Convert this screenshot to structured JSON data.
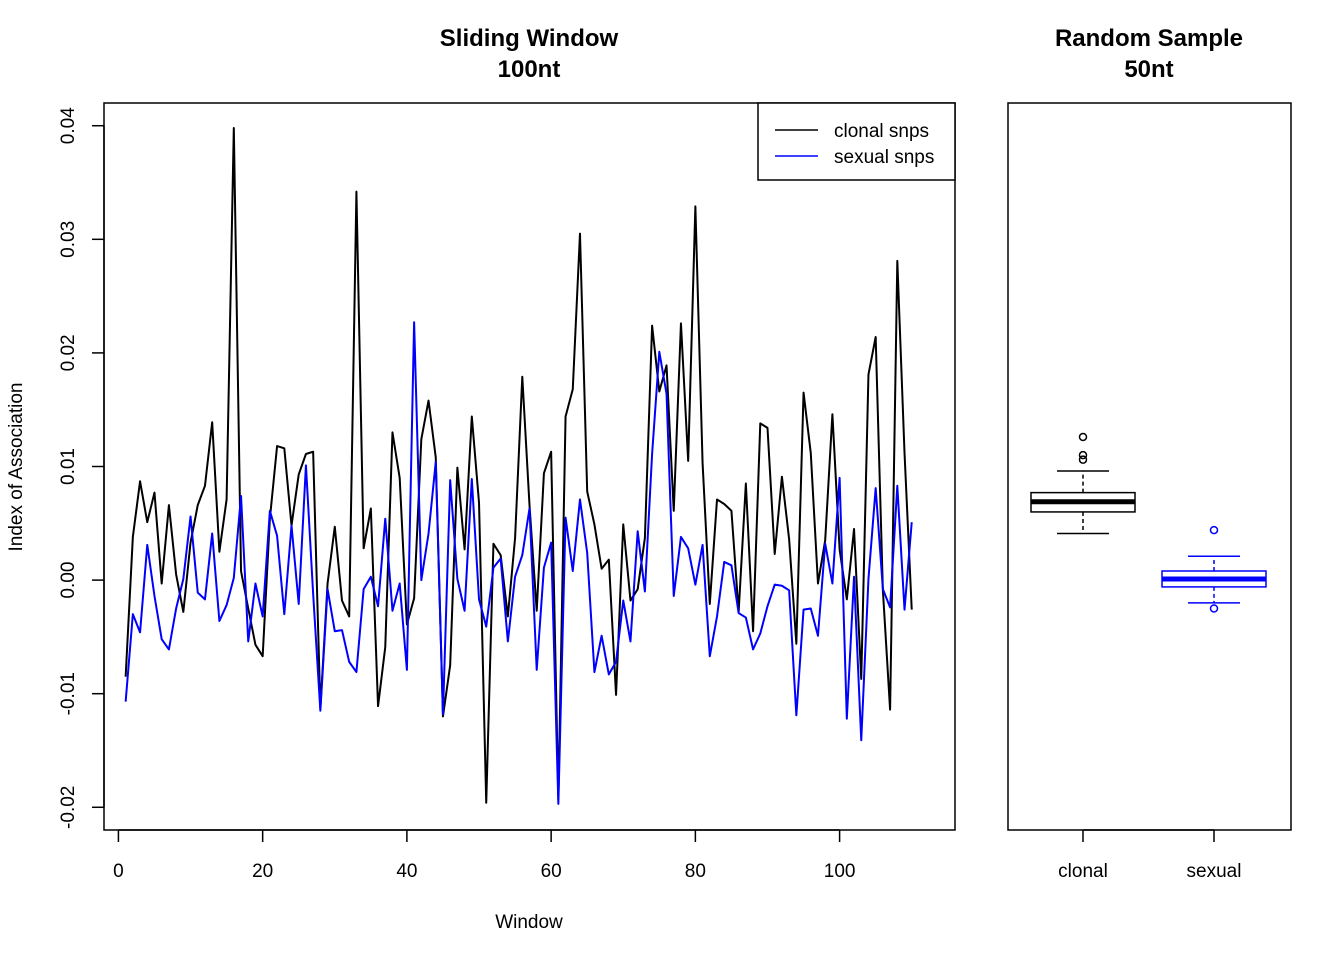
{
  "chart_data": [
    {
      "type": "line",
      "title": "Sliding Window",
      "subtitle": "100nt",
      "xlabel": "Window",
      "ylabel": "Index of Association",
      "xlim": [
        -2,
        116
      ],
      "ylim": [
        -0.022,
        0.042
      ],
      "xticks": [
        0,
        20,
        40,
        60,
        80,
        100
      ],
      "xtick_labels": [
        "0",
        "20",
        "40",
        "60",
        "80",
        "100"
      ],
      "yticks": [
        -0.02,
        -0.01,
        0,
        0.01,
        0.02,
        0.03,
        0.04
      ],
      "ytick_labels": [
        "-0.02",
        "-0.01",
        "0.00",
        "0.01",
        "0.02",
        "0.03",
        "0.04"
      ],
      "legend_position": "top-right",
      "x_start": 1,
      "x_step": 1,
      "series": [
        {
          "name": "clonal snps",
          "color": "#000000",
          "values": [
            -0.0085,
            0.0038,
            0.0087,
            0.0051,
            0.0077,
            -0.0003,
            0.0066,
            0.0005,
            -0.0028,
            0.0033,
            0.0066,
            0.0083,
            0.0139,
            0.0025,
            0.0071,
            0.0398,
            0.0008,
            -0.0025,
            -0.0057,
            -0.0067,
            0.0054,
            0.0118,
            0.0116,
            0.0048,
            0.0093,
            0.0111,
            0.0113,
            -0.0113,
            -0.0003,
            0.0047,
            -0.0018,
            -0.0032,
            0.0342,
            0.0028,
            0.0063,
            -0.0111,
            -0.0059,
            0.013,
            0.009,
            -0.0039,
            -0.0016,
            0.0124,
            0.0158,
            0.0108,
            -0.012,
            -0.0075,
            0.0099,
            0.0027,
            0.0144,
            0.0068,
            -0.0196,
            0.0032,
            0.0022,
            -0.0032,
            0.0037,
            0.0179,
            0.0066,
            -0.0027,
            0.0094,
            0.0113,
            -0.0193,
            0.0144,
            0.0168,
            0.0305,
            0.0078,
            0.0049,
            0.001,
            0.0018,
            -0.0101,
            0.0049,
            -0.0018,
            -0.0008,
            0.0037,
            0.0224,
            0.0166,
            0.0189,
            0.0061,
            0.0226,
            0.0105,
            0.0329,
            0.0103,
            -0.0021,
            0.0071,
            0.0067,
            0.0061,
            -0.0028,
            0.0085,
            -0.0045,
            0.0138,
            0.0134,
            0.0023,
            0.0091,
            0.0036,
            -0.0056,
            0.0165,
            0.0112,
            -0.0003,
            0.0035,
            0.0146,
            0.0027,
            -0.0017,
            0.0045,
            -0.0087,
            0.0181,
            0.0214,
            -0.0009,
            -0.0114,
            0.0281,
            0.0112,
            -0.0026
          ]
        },
        {
          "name": "sexual snps",
          "color": "#0000ff",
          "values": [
            -0.0107,
            -0.003,
            -0.0046,
            0.0031,
            -0.0014,
            -0.0052,
            -0.0061,
            -0.0025,
            0.0001,
            0.0056,
            -0.0011,
            -0.0017,
            0.0041,
            -0.0036,
            -0.0022,
            0.0002,
            0.0074,
            -0.0054,
            -0.0003,
            -0.0032,
            0.0061,
            0.0039,
            -0.003,
            0.0048,
            -0.0021,
            0.0101,
            -0.0012,
            -0.0115,
            -0.0008,
            -0.0045,
            -0.0044,
            -0.0072,
            -0.0081,
            -0.0008,
            0.0003,
            -0.0023,
            0.0054,
            -0.0027,
            -0.0003,
            -0.0079,
            0.0227,
            0.0,
            0.0041,
            0.0104,
            -0.0118,
            0.0088,
            0.0001,
            -0.0027,
            0.0089,
            -0.0017,
            -0.0041,
            0.0011,
            0.0019,
            -0.0054,
            0.0003,
            0.0022,
            0.0063,
            -0.0079,
            0.0011,
            0.0033,
            -0.0197,
            0.0055,
            0.0008,
            0.0071,
            0.0024,
            -0.0081,
            -0.0049,
            -0.0083,
            -0.0072,
            -0.0018,
            -0.0054,
            0.0043,
            -0.001,
            0.0111,
            0.0201,
            0.0164,
            -0.0014,
            0.0038,
            0.0028,
            -0.0004,
            0.0031,
            -0.0067,
            -0.0032,
            0.0016,
            0.0013,
            -0.0029,
            -0.0033,
            -0.0061,
            -0.0047,
            -0.0023,
            -0.0004,
            -0.0005,
            -0.0009,
            -0.0119,
            -0.0026,
            -0.0025,
            -0.0049,
            0.0032,
            -0.0003,
            0.009,
            -0.0122,
            0.0003,
            -0.0141,
            0.0001,
            0.0081,
            -0.0008,
            -0.0024,
            0.0083,
            -0.0026,
            0.0051
          ]
        }
      ]
    },
    {
      "type": "box",
      "title": "Random Sample",
      "subtitle": "50nt",
      "categories": [
        "clonal",
        "sexual"
      ],
      "ylim": [
        -0.022,
        0.042
      ],
      "boxes": [
        {
          "name": "clonal",
          "color": "#000000",
          "whisker_low": 0.0041,
          "q1": 0.006,
          "median": 0.0069,
          "q3": 0.0077,
          "whisker_high": 0.0096,
          "outliers": [
            0.0126,
            0.011,
            0.0106
          ]
        },
        {
          "name": "sexual",
          "color": "#0000ff",
          "whisker_low": -0.002,
          "q1": -0.0006,
          "median": 0.0001,
          "q3": 0.0008,
          "whisker_high": 0.0021,
          "outliers": [
            0.0044,
            -0.0025
          ]
        }
      ]
    }
  ]
}
